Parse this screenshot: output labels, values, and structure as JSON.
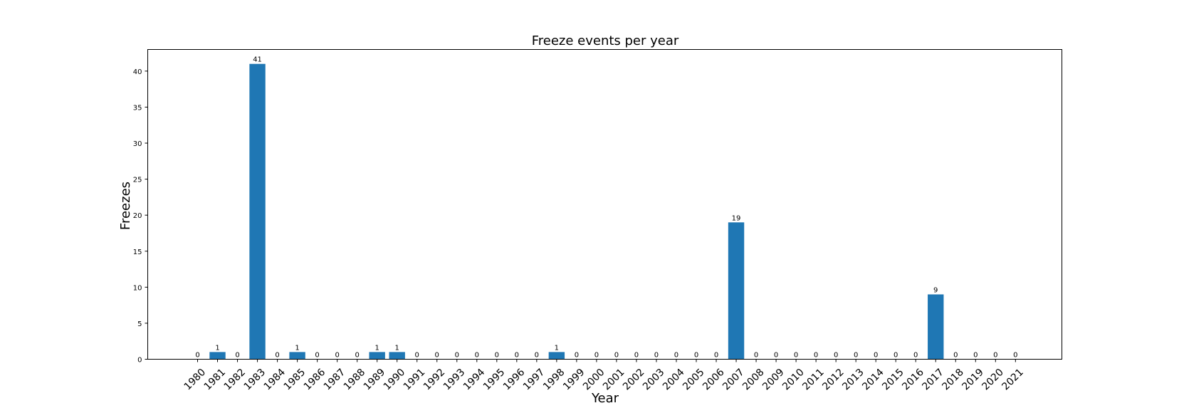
{
  "chart_data": {
    "type": "bar",
    "title": "Freeze events per year",
    "xlabel": "Year",
    "ylabel": "Freezes",
    "categories": [
      "1980",
      "1981",
      "1982",
      "1983",
      "1984",
      "1985",
      "1986",
      "1987",
      "1988",
      "1989",
      "1990",
      "1991",
      "1992",
      "1993",
      "1994",
      "1995",
      "1996",
      "1997",
      "1998",
      "1999",
      "2000",
      "2001",
      "2002",
      "2003",
      "2004",
      "2005",
      "2006",
      "2007",
      "2008",
      "2009",
      "2010",
      "2011",
      "2012",
      "2013",
      "2014",
      "2015",
      "2016",
      "2017",
      "2018",
      "2019",
      "2020",
      "2021"
    ],
    "values": [
      0,
      1,
      0,
      41,
      0,
      1,
      0,
      0,
      0,
      1,
      1,
      0,
      0,
      0,
      0,
      0,
      0,
      0,
      1,
      0,
      0,
      0,
      0,
      0,
      0,
      0,
      0,
      19,
      0,
      0,
      0,
      0,
      0,
      0,
      0,
      0,
      0,
      9,
      0,
      0,
      0,
      0
    ],
    "ylim": [
      0,
      43
    ],
    "yticks": [
      0,
      5,
      10,
      15,
      20,
      25,
      30,
      35,
      40
    ],
    "grid": false,
    "legend": "none",
    "show_data_labels": true,
    "bar_color": "#1f77b4"
  }
}
